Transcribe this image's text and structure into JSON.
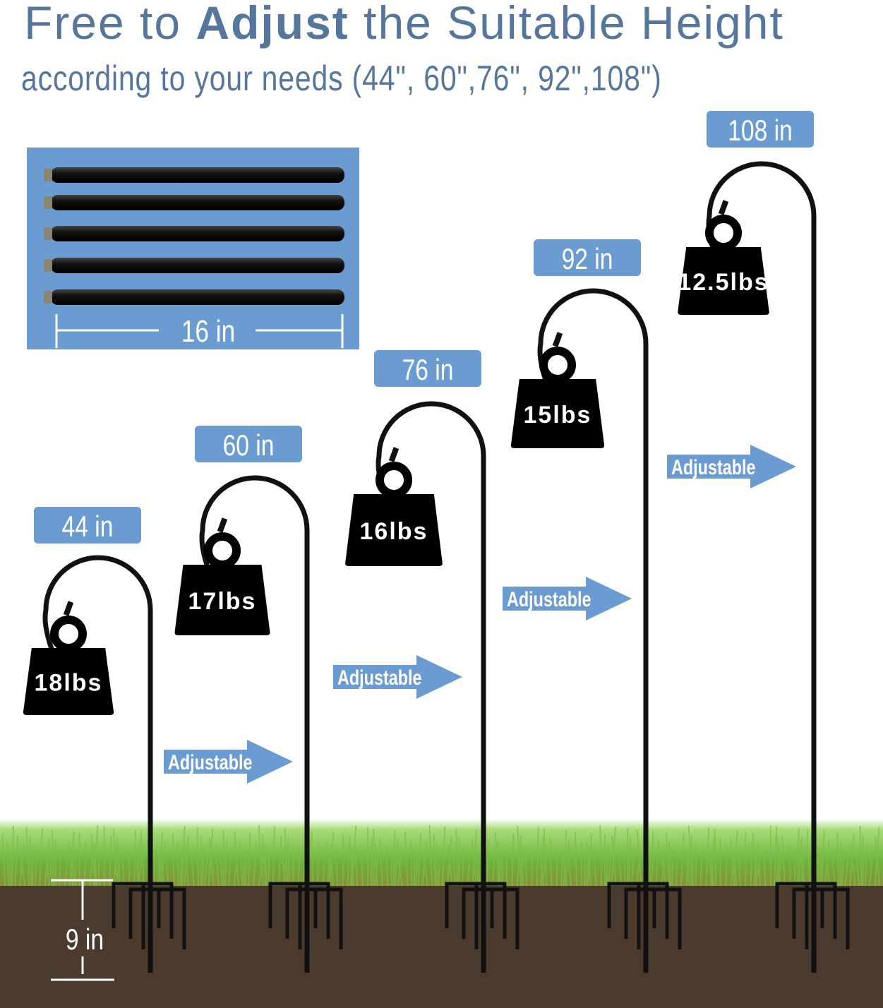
{
  "heading": {
    "part1": "Free to ",
    "part2": "Adjust",
    "part3": " the Suitable Height"
  },
  "subtitle": "according to your needs (44\", 60\",76\", 92\",108\")",
  "rods_panel": {
    "length_label": "16 in",
    "rod_count": 5
  },
  "heights": [
    "44 in",
    "60 in",
    "76 in",
    "92 in",
    "108 in"
  ],
  "weights": [
    "18lbs",
    "17lbs",
    "16lbs",
    "15lbs",
    "12.5lbs"
  ],
  "adjust_label": "Adjustable",
  "ground_depth_label": "9 in",
  "colors": {
    "title": "#57769c",
    "label_box": "#6a9bd1",
    "panel": "#6a9bd1",
    "grass": "#7cc24a",
    "soil": "#4a3b2e",
    "pole": "#111111"
  }
}
